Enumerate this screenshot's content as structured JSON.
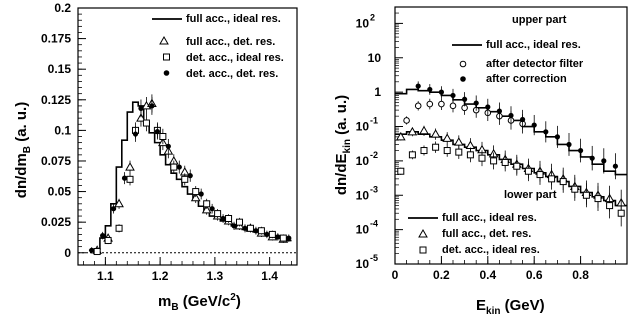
{
  "chart_data": [
    {
      "type": "line",
      "xlabel": "m_B (GeV/c^2)",
      "ylabel": "dn/dm_B (a. u.)",
      "xlim": [
        1.05,
        1.45
      ],
      "ylim": [
        -0.01,
        0.2
      ],
      "x_ticks": [
        1.1,
        1.2,
        1.3,
        1.4
      ],
      "x_tick_labels": [
        "1.1",
        "1.2",
        "1.3",
        "1.4"
      ],
      "y_ticks": [
        0,
        0.025,
        0.05,
        0.075,
        0.1,
        0.125,
        0.15,
        0.175,
        0.2
      ],
      "y_tick_labels": [
        "0",
        "0.025",
        "0.05",
        "0.075",
        "0.1",
        "0.125",
        "0.15",
        "0.175",
        "0.2"
      ],
      "legend_position": "top-right",
      "series": [
        {
          "name": "full acc., ideal res.",
          "style": "histogram",
          "x": [
            1.075,
            1.085,
            1.095,
            1.105,
            1.115,
            1.125,
            1.135,
            1.145,
            1.155,
            1.165,
            1.175,
            1.185,
            1.195,
            1.205,
            1.215,
            1.225,
            1.235,
            1.245,
            1.255,
            1.265,
            1.275,
            1.285,
            1.295,
            1.305,
            1.315,
            1.325,
            1.335,
            1.345,
            1.355,
            1.365,
            1.375,
            1.385,
            1.395,
            1.405,
            1.415,
            1.425,
            1.435
          ],
          "values": [
            0.002,
            0.003,
            0.012,
            0.022,
            0.04,
            0.07,
            0.092,
            0.115,
            0.123,
            0.12,
            0.107,
            0.098,
            0.09,
            0.08,
            0.072,
            0.065,
            0.06,
            0.054,
            0.048,
            0.043,
            0.038,
            0.034,
            0.03,
            0.028,
            0.026,
            0.024,
            0.022,
            0.02,
            0.019,
            0.018,
            0.017,
            0.016,
            0.015,
            0.014,
            0.012,
            0.011,
            0.01
          ]
        },
        {
          "name": "full acc., det. res.",
          "style": "open-triangle",
          "x": [
            1.085,
            1.105,
            1.125,
            1.145,
            1.165,
            1.175,
            1.185,
            1.205,
            1.215,
            1.225,
            1.245,
            1.265,
            1.285,
            1.305,
            1.325,
            1.345,
            1.365,
            1.385,
            1.405,
            1.425
          ],
          "values": [
            0.002,
            0.012,
            0.04,
            0.07,
            0.11,
            0.12,
            0.122,
            0.09,
            0.083,
            0.075,
            0.066,
            0.045,
            0.035,
            0.03,
            0.026,
            0.022,
            0.02,
            0.016,
            0.013,
            0.011
          ]
        },
        {
          "name": "det. acc., ideal res.",
          "style": "open-square",
          "x": [
            1.085,
            1.105,
            1.125,
            1.145,
            1.155,
            1.175,
            1.195,
            1.205,
            1.225,
            1.245,
            1.265,
            1.285,
            1.305,
            1.325,
            1.345,
            1.365,
            1.385,
            1.405,
            1.425
          ],
          "values": [
            0.001,
            0.01,
            0.02,
            0.06,
            0.1,
            0.106,
            0.1,
            0.095,
            0.07,
            0.06,
            0.05,
            0.04,
            0.032,
            0.028,
            0.025,
            0.02,
            0.018,
            0.015,
            0.012
          ]
        },
        {
          "name": "det. acc., det. res.",
          "style": "filled-circle",
          "x": [
            1.075,
            1.095,
            1.115,
            1.135,
            1.155,
            1.165,
            1.185,
            1.195,
            1.215,
            1.235,
            1.255,
            1.275,
            1.295,
            1.315,
            1.335,
            1.355,
            1.375,
            1.395,
            1.415,
            1.435
          ],
          "values": [
            0.002,
            0.014,
            0.036,
            0.061,
            0.097,
            0.118,
            0.12,
            0.099,
            0.087,
            0.07,
            0.063,
            0.048,
            0.036,
            0.028,
            0.022,
            0.02,
            0.018,
            0.015,
            0.013,
            0.012
          ]
        }
      ]
    },
    {
      "type": "line",
      "xlabel": "E_kin (GeV)",
      "ylabel": "dn/dE_kin (a. u.)",
      "xlim": [
        0,
        1.0
      ],
      "ylim": [
        1e-05,
        300
      ],
      "yscale": "log",
      "x_ticks": [
        0,
        0.2,
        0.4,
        0.6,
        0.8
      ],
      "x_tick_labels": [
        "0",
        "0.2",
        "0.4",
        "0.6",
        "0.8"
      ],
      "y_ticks": [
        1e-05,
        0.0001,
        0.001,
        0.01,
        0.1,
        1,
        10,
        100
      ],
      "y_tick_labels": [
        {
          "base": "10",
          "exp": "-5"
        },
        {
          "base": "10",
          "exp": "-4"
        },
        {
          "base": "10",
          "exp": "-3"
        },
        {
          "base": "10",
          "exp": "-2"
        },
        {
          "base": "10",
          "exp": "-1"
        },
        {
          "base": "1",
          "exp": ""
        },
        {
          "base": "10",
          "exp": ""
        },
        {
          "base": "10",
          "exp": "2"
        }
      ],
      "annotations": [
        "upper part",
        "lower part"
      ],
      "upper_legend": [
        "full acc., ideal res.",
        "after detector filter",
        "after correction"
      ],
      "lower_legend": [
        "full acc., ideal res.",
        "full acc., det. res.",
        "det. acc., ideal res."
      ],
      "series": [
        {
          "name": "full acc., ideal res. (upper part)",
          "style": "histogram",
          "x": [
            0.025,
            0.075,
            0.125,
            0.175,
            0.225,
            0.275,
            0.325,
            0.375,
            0.425,
            0.475,
            0.525,
            0.575,
            0.625,
            0.675,
            0.725,
            0.775,
            0.825,
            0.875,
            0.925,
            0.975
          ],
          "values": [
            0.9,
            1.2,
            1.1,
            1.0,
            0.8,
            0.6,
            0.45,
            0.35,
            0.27,
            0.2,
            0.15,
            0.1,
            0.07,
            0.05,
            0.03,
            0.02,
            0.013,
            0.008,
            0.005,
            0.004
          ]
        },
        {
          "name": "after detector filter",
          "style": "open-circle",
          "x": [
            0.05,
            0.1,
            0.15,
            0.2,
            0.25,
            0.3,
            0.35,
            0.4,
            0.45,
            0.5,
            0.55
          ],
          "values": [
            0.15,
            0.4,
            0.45,
            0.45,
            0.4,
            0.35,
            0.3,
            0.25,
            0.2,
            0.15,
            0.12
          ]
        },
        {
          "name": "after correction",
          "style": "filled-circle",
          "x": [
            0.1,
            0.15,
            0.2,
            0.25,
            0.3,
            0.35,
            0.4,
            0.45,
            0.5,
            0.55,
            0.6,
            0.65,
            0.7,
            0.75,
            0.8,
            0.85,
            0.9,
            0.95
          ],
          "values": [
            1.5,
            1.2,
            1.0,
            0.8,
            0.62,
            0.48,
            0.37,
            0.28,
            0.21,
            0.16,
            0.11,
            0.07,
            0.05,
            0.03,
            0.02,
            0.012,
            0.01,
            0.007
          ]
        },
        {
          "name": "full acc., ideal res. (lower part)",
          "style": "histogram",
          "x": [
            0.025,
            0.075,
            0.125,
            0.175,
            0.225,
            0.275,
            0.325,
            0.375,
            0.425,
            0.475,
            0.525,
            0.575,
            0.625,
            0.675,
            0.725,
            0.775,
            0.825,
            0.875,
            0.925,
            0.975
          ],
          "values": [
            0.06,
            0.07,
            0.06,
            0.05,
            0.04,
            0.03,
            0.025,
            0.02,
            0.015,
            0.011,
            0.008,
            0.006,
            0.0045,
            0.0035,
            0.0025,
            0.0018,
            0.0012,
            0.0009,
            0.0007,
            0.0005
          ]
        },
        {
          "name": "full acc., det. res.",
          "style": "open-triangle",
          "x": [
            0.025,
            0.075,
            0.125,
            0.175,
            0.225,
            0.275,
            0.325,
            0.375,
            0.425,
            0.475,
            0.525,
            0.575,
            0.625,
            0.675,
            0.725,
            0.775,
            0.825,
            0.875,
            0.925,
            0.975
          ],
          "values": [
            0.05,
            0.07,
            0.075,
            0.06,
            0.045,
            0.035,
            0.028,
            0.021,
            0.016,
            0.011,
            0.008,
            0.006,
            0.005,
            0.004,
            0.003,
            0.0018,
            0.0012,
            0.001,
            0.0008,
            0.0006
          ]
        },
        {
          "name": "det. acc., ideal res.",
          "style": "open-square",
          "x": [
            0.025,
            0.075,
            0.125,
            0.175,
            0.225,
            0.275,
            0.325,
            0.375,
            0.425,
            0.475,
            0.525,
            0.575,
            0.625,
            0.675,
            0.725,
            0.775,
            0.825,
            0.875,
            0.925,
            0.975
          ],
          "values": [
            0.005,
            0.015,
            0.02,
            0.025,
            0.02,
            0.018,
            0.015,
            0.012,
            0.01,
            0.009,
            0.007,
            0.005,
            0.004,
            0.003,
            0.0025,
            0.0015,
            0.001,
            0.0008,
            0.0005,
            0.0003
          ]
        }
      ]
    }
  ]
}
